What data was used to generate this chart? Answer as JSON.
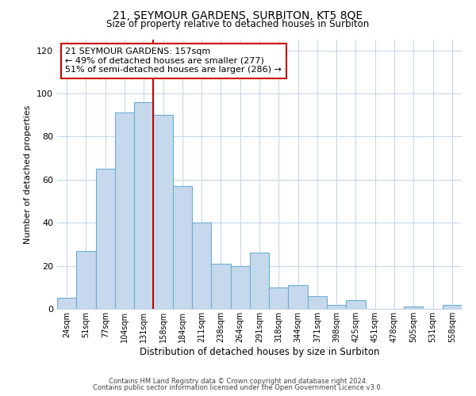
{
  "title": "21, SEYMOUR GARDENS, SURBITON, KT5 8QE",
  "subtitle": "Size of property relative to detached houses in Surbiton",
  "xlabel": "Distribution of detached houses by size in Surbiton",
  "ylabel": "Number of detached properties",
  "bar_labels": [
    "24sqm",
    "51sqm",
    "77sqm",
    "104sqm",
    "131sqm",
    "158sqm",
    "184sqm",
    "211sqm",
    "238sqm",
    "264sqm",
    "291sqm",
    "318sqm",
    "344sqm",
    "371sqm",
    "398sqm",
    "425sqm",
    "451sqm",
    "478sqm",
    "505sqm",
    "531sqm",
    "558sqm"
  ],
  "bar_values": [
    5,
    27,
    65,
    91,
    96,
    90,
    57,
    40,
    21,
    20,
    26,
    10,
    11,
    6,
    2,
    4,
    0,
    0,
    1,
    0,
    2
  ],
  "bar_color": "#c6d9ec",
  "bar_edge_color": "#6baed6",
  "vline_x": 4.5,
  "vline_color": "#cc0000",
  "ylim": [
    0,
    125
  ],
  "yticks": [
    0,
    20,
    40,
    60,
    80,
    100,
    120
  ],
  "annotation_title": "21 SEYMOUR GARDENS: 157sqm",
  "annotation_line1": "← 49% of detached houses are smaller (277)",
  "annotation_line2": "51% of semi-detached houses are larger (286) →",
  "annotation_box_color": "#ffffff",
  "annotation_box_edge": "#cc0000",
  "footer1": "Contains HM Land Registry data © Crown copyright and database right 2024.",
  "footer2": "Contains public sector information licensed under the Open Government Licence v3.0.",
  "background_color": "#ffffff",
  "grid_color": "#c8d8e8"
}
